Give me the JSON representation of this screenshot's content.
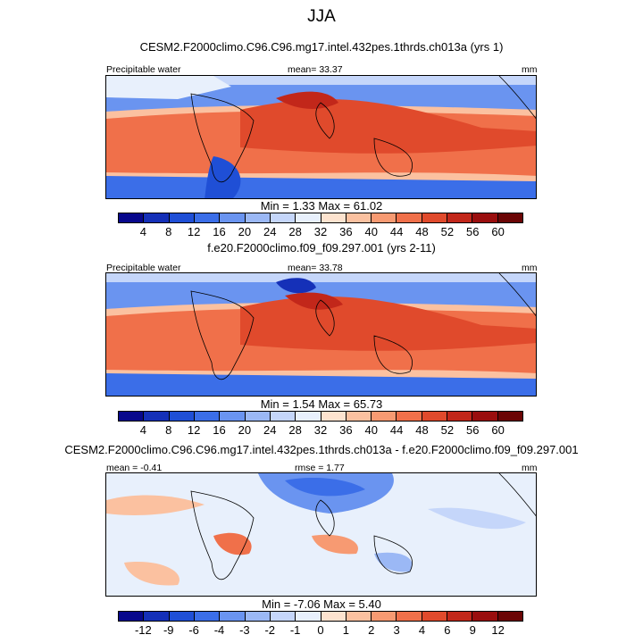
{
  "title": "JJA",
  "panels": [
    {
      "title": "CESM2.F2000climo.C96.C96.mg17.intel.432pes.1thrds.ch013a (yrs 1)",
      "left_label": "Precipitable water",
      "center_label": "mean=  33.37",
      "units": "mm",
      "minmax": "Min =   1.33 Max =  61.02",
      "colorbar_ticks": [
        "4",
        "8",
        "12",
        "16",
        "20",
        "24",
        "28",
        "32",
        "36",
        "40",
        "44",
        "48",
        "52",
        "56",
        "60"
      ]
    },
    {
      "title": "f.e20.F2000climo.f09_f09.297.001 (yrs 2-11)",
      "left_label": "Precipitable water",
      "center_label": "mean=  33.78",
      "units": "mm",
      "minmax": "Min =   1.54 Max =  65.73",
      "colorbar_ticks": [
        "4",
        "8",
        "12",
        "16",
        "20",
        "24",
        "28",
        "32",
        "36",
        "40",
        "44",
        "48",
        "52",
        "56",
        "60"
      ]
    },
    {
      "title": "CESM2.F2000climo.C96.C96.mg17.intel.432pes.1thrds.ch013a - f.e20.F2000climo.f09_f09.297.001",
      "left_label": "mean = -0.41",
      "center_label": "rmse =   1.77",
      "units": "mm",
      "minmax": "Min =  -7.06 Max =   5.40",
      "colorbar_ticks": [
        "-12",
        "-9",
        "-6",
        "-4",
        "-3",
        "-2",
        "-1",
        "0",
        "1",
        "2",
        "3",
        "4",
        "6",
        "9",
        "12"
      ]
    }
  ],
  "colors": {
    "scale": [
      "#08088c",
      "#1530b8",
      "#1f4fd6",
      "#3b6ee8",
      "#6a94f0",
      "#9bb8f5",
      "#c5d6fa",
      "#e8f0fc",
      "#fde3cf",
      "#fbc1a0",
      "#f79a72",
      "#f0704a",
      "#e04a2c",
      "#c2271a",
      "#9a0e0e",
      "#6b0505"
    ]
  }
}
